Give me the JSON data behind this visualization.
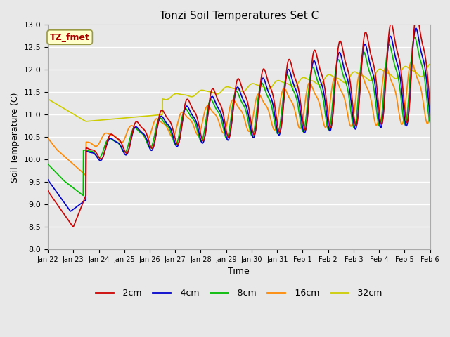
{
  "title": "Tonzi Soil Temperatures Set C",
  "xlabel": "Time",
  "ylabel": "Soil Temperature (C)",
  "ylim": [
    8.0,
    13.0
  ],
  "yticks": [
    8.0,
    8.5,
    9.0,
    9.5,
    10.0,
    10.5,
    11.0,
    11.5,
    12.0,
    12.5,
    13.0
  ],
  "bg_color": "#e8e8e8",
  "annotation_label": "TZ_fmet",
  "annotation_text_color": "#aa0000",
  "annotation_box_facecolor": "#ffffcc",
  "annotation_box_edgecolor": "#999944",
  "series_colors": {
    "-2cm": "#cc0000",
    "-4cm": "#0000cc",
    "-8cm": "#00bb00",
    "-16cm": "#ff8800",
    "-32cm": "#cccc00"
  },
  "xtick_labels": [
    "Jan 22",
    "Jan 23",
    "Jan 24",
    "Jan 25",
    "Jan 26",
    "Jan 27",
    "Jan 28",
    "Jan 29",
    "Jan 30",
    "Jan 31",
    "Feb 1",
    "Feb 2",
    "Feb 3",
    "Feb 4",
    "Feb 5",
    "Feb 6"
  ],
  "figsize": [
    6.4,
    4.8
  ],
  "dpi": 100
}
